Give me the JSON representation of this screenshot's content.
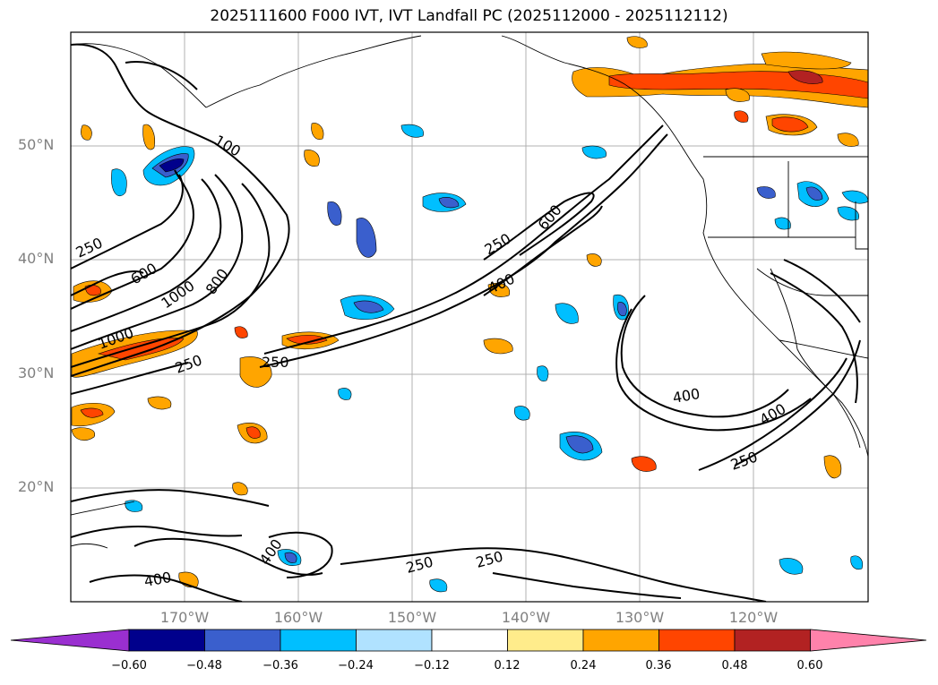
{
  "title": "2025111600 F000 IVT, IVT Landfall PC (2025112000 - 2025112112)",
  "lat_labels": [
    "50°N",
    "40°N",
    "30°N",
    "20°N"
  ],
  "lon_labels": [
    "170°W",
    "160°W",
    "150°W",
    "140°W",
    "130°W",
    "120°W"
  ],
  "contour_labels": [
    "100",
    "250",
    "600",
    "1000",
    "800",
    "1000",
    "250",
    "250",
    "250",
    "600",
    "400",
    "400",
    "400",
    "250",
    "400",
    "400",
    "250",
    "250"
  ],
  "colorbar": {
    "ticks": [
      "−0.60",
      "−0.48",
      "−0.36",
      "−0.24",
      "−0.12",
      "0.12",
      "0.24",
      "0.36",
      "0.48",
      "0.60"
    ],
    "colors": [
      "#9a2fd0",
      "#00008c",
      "#3a5fcd",
      "#00bfff",
      "#b0e2ff",
      "#ffffff",
      "#ffec8b",
      "#ffa500",
      "#ff4500",
      "#b22222",
      "#ff82ab"
    ]
  },
  "colors": {
    "frame": "#000000",
    "grid": "#b0b0b0",
    "contour": "#000000",
    "label_gray": "#808080"
  }
}
